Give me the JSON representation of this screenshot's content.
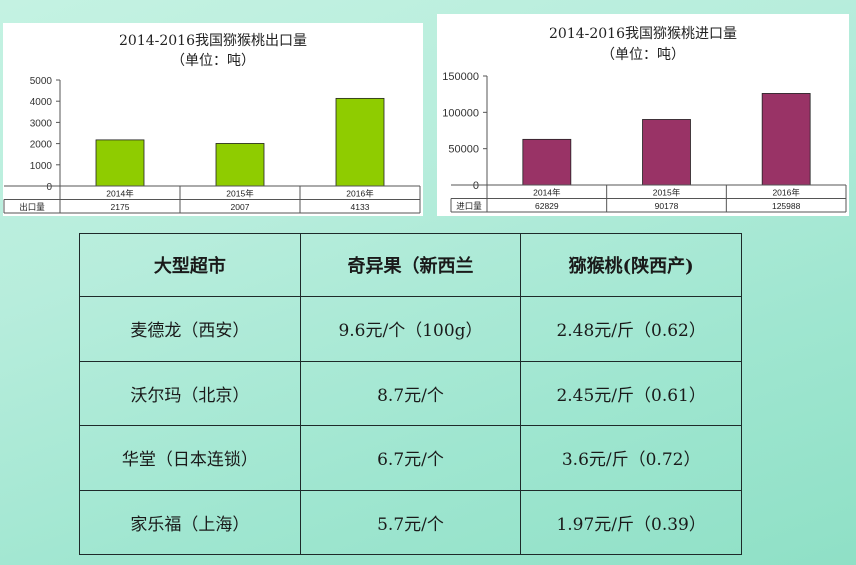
{
  "chart_data": [
    {
      "type": "bar",
      "title": "2014-2016我国猕猴桃出口量",
      "subtitle": "（单位：吨）",
      "categories": [
        "2014年",
        "2015年",
        "2016年"
      ],
      "series": [
        {
          "name": "出口量",
          "values": [
            2175,
            2007,
            4133
          ]
        }
      ],
      "value_labels": [
        "2175",
        "2007",
        "4133"
      ],
      "ylim": [
        0,
        5000
      ],
      "yticks": [
        0,
        1000,
        2000,
        3000,
        4000,
        5000
      ],
      "ytick_labels": [
        "0",
        "1000",
        "2000",
        "3000",
        "4000",
        "5000"
      ],
      "grid": false,
      "legend": "data-table-below",
      "bar_color": "#8fcc00"
    },
    {
      "type": "bar",
      "title": "2014-2016我国猕猴桃进口量",
      "subtitle": "（单位：吨）",
      "categories": [
        "2014年",
        "2015年",
        "2016年"
      ],
      "series": [
        {
          "name": "进口量",
          "values": [
            62829,
            90178,
            125988
          ]
        }
      ],
      "value_labels": [
        "62829",
        "90178",
        "125988"
      ],
      "ylim": [
        0,
        150000
      ],
      "yticks": [
        0,
        50000,
        100000,
        150000
      ],
      "ytick_labels": [
        "0",
        "50000",
        "100000",
        "150000"
      ],
      "grid": false,
      "legend": "data-table-below",
      "bar_color": "#993366"
    }
  ],
  "table": {
    "headers": [
      "大型超市",
      "奇异果（新西兰",
      "猕猴桃(陕西产)"
    ],
    "rows": [
      [
        "麦德龙（西安）",
        "9.6元/个（100g）",
        "2.48元/斤（0.62）"
      ],
      [
        "沃尔玛（北京）",
        "8.7元/个",
        "2.45元/斤（0.61）"
      ],
      [
        "华堂（日本连锁）",
        "6.7元/个",
        "3.6元/斤（0.72）"
      ],
      [
        "家乐福（上海）",
        "5.7元/个",
        "1.97元/斤（0.39）"
      ]
    ]
  }
}
